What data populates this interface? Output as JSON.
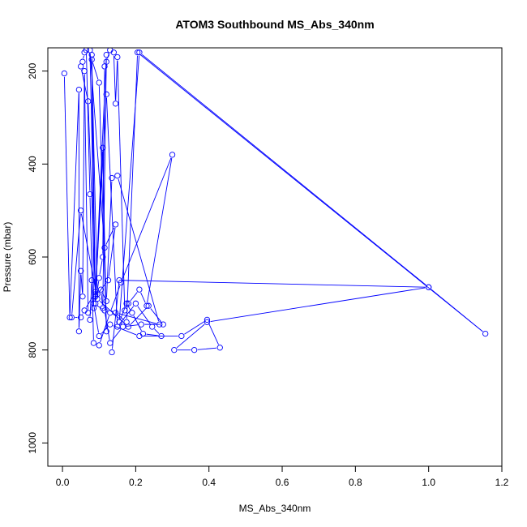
{
  "chart_data": {
    "type": "line",
    "title": "ATOM3 Southbound MS_Abs_340nm",
    "xlabel": "MS_Abs_340nm",
    "ylabel": "Pressure (mbar)",
    "xlim": [
      -0.04,
      1.2
    ],
    "ylim": [
      1050,
      150
    ],
    "y_reversed": true,
    "x_ticks": [
      "0.0",
      "0.2",
      "0.4",
      "0.6",
      "0.8",
      "1.0",
      "1.2"
    ],
    "x_tick_values": [
      0,
      0.2,
      0.4,
      0.6,
      0.8,
      1.0,
      1.2
    ],
    "y_ticks": [
      "200",
      "400",
      "600",
      "800",
      "1000"
    ],
    "y_tick_values": [
      200,
      400,
      600,
      800,
      1000
    ],
    "grid": false,
    "legend": "none",
    "series_color": "#0000ff",
    "marker": "open-circle",
    "series": [
      {
        "x": [
          0.005,
          0.02,
          0.045,
          0.045,
          0.05,
          0.055,
          0.06,
          0.07,
          0.075,
          0.08,
          0.085,
          0.08,
          0.09,
          0.1,
          0.11,
          0.115,
          0.12,
          0.13,
          0.14,
          0.145,
          0.15,
          0.17,
          0.18,
          0.21,
          0.23,
          0.3,
          0.16,
          0.13,
          0.1,
          0.085,
          0.075,
          0.065,
          0.06,
          0.055,
          0.05,
          0.07,
          0.09,
          0.11,
          0.12,
          0.1,
          0.08,
          0.095,
          0.125,
          0.145,
          0.115,
          0.075,
          0.09,
          0.12,
          0.15,
          0.2,
          0.245,
          0.27,
          0.22,
          0.19,
          0.175,
          0.155,
          0.21,
          1.0,
          1.155,
          0.205,
          0.175,
          0.145,
          0.265,
          0.15,
          0.135,
          0.12,
          0.105,
          0.11,
          0.12,
          0.09,
          0.06,
          0.05,
          0.025,
          0.05,
          0.095,
          0.18,
          0.235,
          0.275,
          0.215,
          0.165,
          0.13,
          0.115,
          0.085,
          0.1,
          0.13,
          0.21,
          0.325,
          0.395,
          0.43,
          0.36,
          0.305,
          0.395,
          1.0,
          0.155,
          0.135
        ],
        "y": [
          205,
          730,
          240,
          760,
          630,
          685,
          200,
          720,
          735,
          650,
          710,
          165,
          700,
          645,
          600,
          190,
          180,
          155,
          160,
          270,
          170,
          715,
          700,
          670,
          705,
          380,
          655,
          720,
          790,
          785,
          465,
          155,
          160,
          180,
          190,
          265,
          685,
          365,
          760,
          225,
          175,
          680,
          650,
          530,
          580,
          155,
          680,
          250,
          750,
          700,
          750,
          770,
          765,
          720,
          700,
          740,
          160,
          665,
          765,
          160,
          740,
          720,
          745,
          425,
          430,
          695,
          670,
          710,
          165,
          675,
          715,
          730,
          730,
          500,
          690,
          750,
          705,
          745,
          745,
          750,
          785,
          715,
          700,
          770,
          745,
          770,
          770,
          735,
          795,
          800,
          800,
          740,
          665,
          650,
          805
        ]
      }
    ]
  }
}
